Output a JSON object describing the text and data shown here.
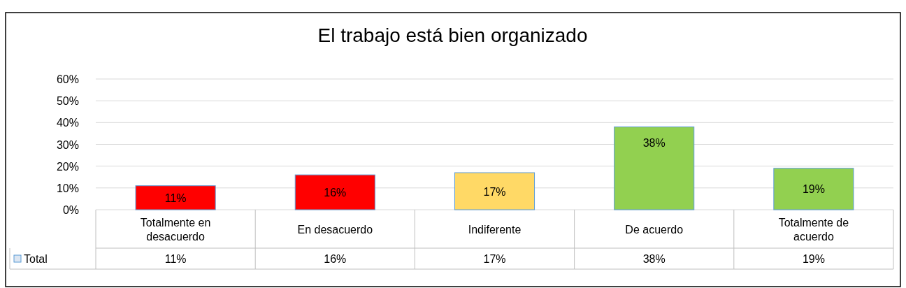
{
  "chart_data": {
    "type": "bar",
    "title": "El trabajo está bien organizado",
    "categories": [
      "Totalmente en desacuerdo",
      "En desacuerdo",
      "Indiferente",
      "De acuerdo",
      "Totalmente de acuerdo"
    ],
    "series": [
      {
        "name": "Total",
        "color": "#dce6f2",
        "colors": [
          "#ff0000",
          "#ff0000",
          "#ffd966",
          "#92d050",
          "#92d050"
        ],
        "values": [
          11,
          16,
          17,
          38,
          19
        ],
        "value_labels": [
          "11%",
          "16%",
          "17%",
          "38%",
          "19%"
        ]
      }
    ],
    "ylim": [
      0,
      60
    ],
    "yticks": [
      {
        "value": 0,
        "label": "0%"
      },
      {
        "value": 10,
        "label": "10%"
      },
      {
        "value": 20,
        "label": "20%"
      },
      {
        "value": 30,
        "label": "30%"
      },
      {
        "value": 40,
        "label": "40%"
      },
      {
        "value": 50,
        "label": "50%"
      },
      {
        "value": 60,
        "label": "60%"
      }
    ],
    "grid": "y",
    "legend": "bottom"
  }
}
